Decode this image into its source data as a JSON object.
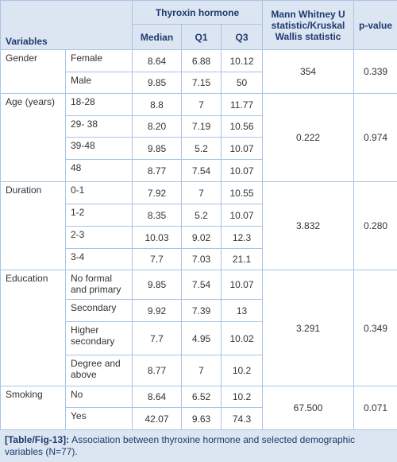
{
  "table": {
    "header": {
      "variables": "Variables",
      "group": "Thyroxin hormone",
      "columns": [
        "Median",
        "Q1",
        "Q3"
      ],
      "statistic": "Mann Whitney U statistic/Kruskal Wallis statistic",
      "p_value": "p-value"
    },
    "groups": [
      {
        "variable": "Gender",
        "statistic": "354",
        "p_value": "0.339",
        "rows": [
          {
            "label": "Female",
            "values": [
              "8.64",
              "6.88",
              "10.12"
            ]
          },
          {
            "label": "Male",
            "values": [
              "9.85",
              "7.15",
              "50"
            ]
          }
        ]
      },
      {
        "variable": "Age (years)",
        "statistic": "0.222",
        "p_value": "0.974",
        "rows": [
          {
            "label": "18-28",
            "values": [
              "8.8",
              "7",
              "11.77"
            ]
          },
          {
            "label": "29- 38",
            "values": [
              "8.20",
              "7.19",
              "10.56"
            ]
          },
          {
            "label": "39-48",
            "values": [
              "9.85",
              "5.2",
              "10.07"
            ]
          },
          {
            "label": "48",
            "values": [
              "8.77",
              "7.54",
              "10.07"
            ]
          }
        ]
      },
      {
        "variable": "Duration",
        "statistic": "3.832",
        "p_value": "0.280",
        "rows": [
          {
            "label": "0-1",
            "values": [
              "7.92",
              "7",
              "10.55"
            ]
          },
          {
            "label": "1-2",
            "values": [
              "8.35",
              "5.2",
              "10.07"
            ]
          },
          {
            "label": "2-3",
            "values": [
              "10.03",
              "9.02",
              "12.3"
            ]
          },
          {
            "label": "3-4",
            "values": [
              "7.7",
              "7.03",
              "21.1"
            ]
          }
        ]
      },
      {
        "variable": "Education",
        "statistic": "3.291",
        "p_value": "0.349",
        "rows": [
          {
            "label": "No formal and primary",
            "values": [
              "9.85",
              "7.54",
              "10.07"
            ]
          },
          {
            "label": "Secondary",
            "values": [
              "9.92",
              "7.39",
              "13"
            ]
          },
          {
            "label": "Higher secondary",
            "values": [
              "7.7",
              "4.95",
              "10.02"
            ]
          },
          {
            "label": "Degree and above",
            "values": [
              "8.77",
              "7",
              "10.2"
            ]
          }
        ]
      },
      {
        "variable": "Smoking",
        "statistic": "67.500",
        "p_value": "0.071",
        "rows": [
          {
            "label": "No",
            "values": [
              "8.64",
              "6.52",
              "10.2"
            ]
          },
          {
            "label": "Yes",
            "values": [
              "42.07",
              "9.63",
              "74.3"
            ]
          }
        ]
      }
    ]
  },
  "caption": {
    "label": "[Table/Fig-13]:",
    "text": "Association between thyroxine hormone and selected demographic variables (N=77)."
  }
}
